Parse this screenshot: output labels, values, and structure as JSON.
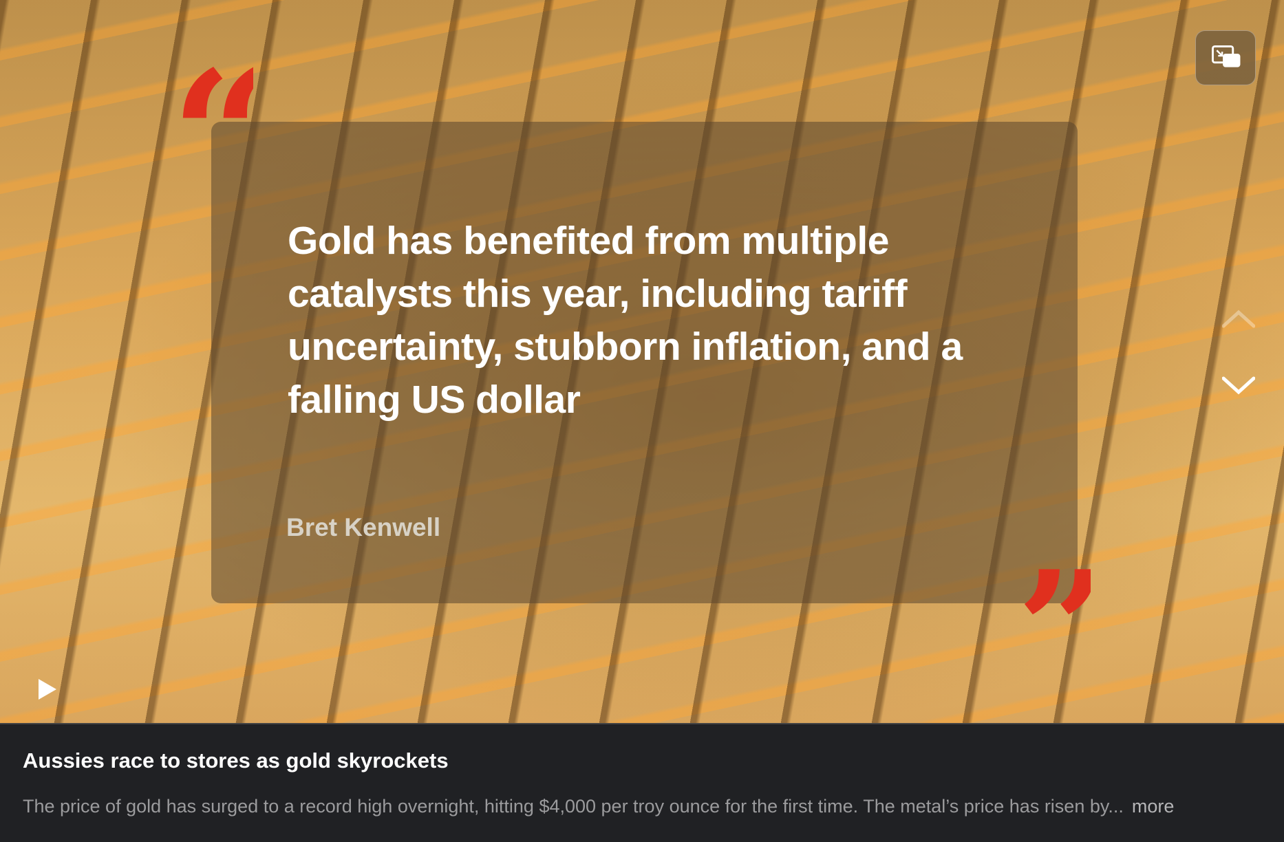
{
  "slide": {
    "quote": "Gold has benefited from multiple catalysts this year, including tariff uncertainty, stubborn inflation, and a falling US dollar",
    "author": "Bret Kenwell",
    "open_mark": "“",
    "close_mark": "”",
    "accent_color": "#e0301e"
  },
  "controls": {
    "pip_icon": "picture-in-picture-icon",
    "prev_icon": "chevron-up-icon",
    "next_icon": "chevron-down-icon",
    "play_icon": "play-icon"
  },
  "caption": {
    "title": "Aussies race to stores as gold skyrockets",
    "body": "The price of gold has surged to a record high overnight, hitting $4,000 per troy ounce for the first time. The metal’s price has risen by...",
    "more_label": "more"
  }
}
